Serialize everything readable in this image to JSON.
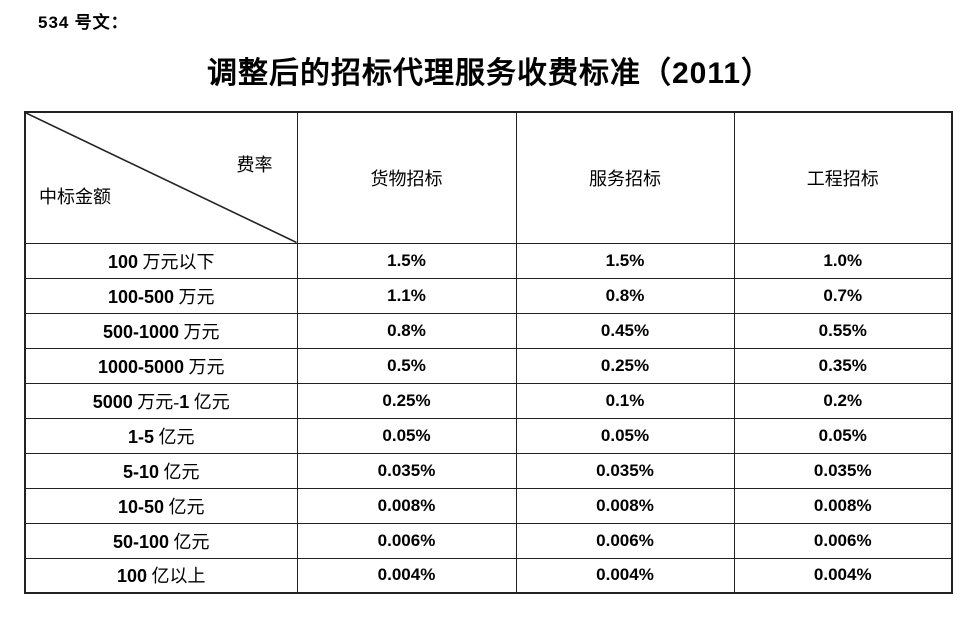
{
  "page": {
    "doc_ref": "534 号文：",
    "title": "调整后的招标代理服务收费标准（2011）"
  },
  "colors": {
    "background": "#ffffff",
    "text": "#000000",
    "table_border": "#222222"
  },
  "fee_table": {
    "corner": {
      "rate_label": "费率",
      "amount_label": "中标金额"
    },
    "columns": [
      "货物招标",
      "服务招标",
      "工程招标"
    ],
    "rows": [
      {
        "tier": "100 万元以下",
        "goods": "1.5%",
        "services": "1.5%",
        "engineering": "1.0%"
      },
      {
        "tier": "100-500 万元",
        "goods": "1.1%",
        "services": "0.8%",
        "engineering": "0.7%"
      },
      {
        "tier": "500-1000 万元",
        "goods": "0.8%",
        "services": "0.45%",
        "engineering": "0.55%"
      },
      {
        "tier": "1000-5000 万元",
        "goods": "0.5%",
        "services": "0.25%",
        "engineering": "0.35%"
      },
      {
        "tier": "5000 万元-1 亿元",
        "goods": "0.25%",
        "services": "0.1%",
        "engineering": "0.2%"
      },
      {
        "tier": "1-5 亿元",
        "goods": "0.05%",
        "services": "0.05%",
        "engineering": "0.05%"
      },
      {
        "tier": "5-10 亿元",
        "goods": "0.035%",
        "services": "0.035%",
        "engineering": "0.035%"
      },
      {
        "tier": "10-50 亿元",
        "goods": "0.008%",
        "services": "0.008%",
        "engineering": "0.008%"
      },
      {
        "tier": "50-100 亿元",
        "goods": "0.006%",
        "services": "0.006%",
        "engineering": "0.006%"
      },
      {
        "tier": "100 亿以上",
        "goods": "0.004%",
        "services": "0.004%",
        "engineering": "0.004%"
      }
    ]
  }
}
